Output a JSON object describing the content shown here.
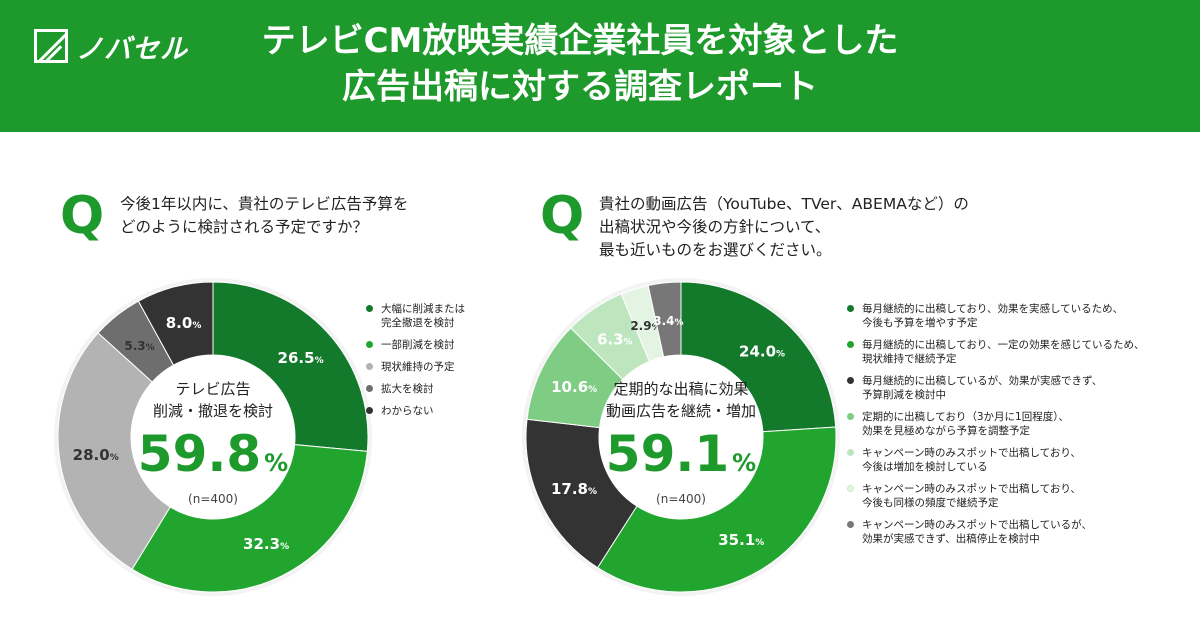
{
  "header": {
    "logo_text": "ノバセル",
    "title_line1": "テレビCM放映実績企業社員を対象とした",
    "title_line2": "広告出稿に対する調査レポート"
  },
  "q_mark": "Q",
  "left": {
    "question": [
      "今後1年以内に、貴社のテレビ広告予算を",
      "どのように検討される予定ですか？"
    ],
    "center_lines": [
      "テレビ広告",
      "削減・撤退を検討"
    ],
    "center_value": "59.8",
    "center_unit": "%",
    "n_label": "(n=400)",
    "legend": [
      {
        "label": [
          "大幅に削減または",
          "完全撤退を検討"
        ],
        "color": "#137a2c"
      },
      {
        "label": [
          "一部削減を検討"
        ],
        "color": "#21a52f"
      },
      {
        "label": [
          "現状維持の予定"
        ],
        "color": "#b3b3b3"
      },
      {
        "label": [
          "拡大を検討"
        ],
        "color": "#6e6e6e"
      },
      {
        "label": [
          "わからない"
        ],
        "color": "#333333"
      }
    ]
  },
  "right": {
    "question": [
      "貴社の動画広告（YouTube、TVer、ABEMAなど）の",
      "出稿状況や今後の方針について、",
      "最も近いものをお選びください。"
    ],
    "center_lines": [
      "定期的な出稿に効果",
      "動画広告を継続・増加"
    ],
    "center_value": "59.1",
    "center_unit": "%",
    "n_label": "(n=400)",
    "legend": [
      {
        "label": [
          "毎月継続的に出稿しており、効果を実感しているため、",
          "今後も予算を増やす予定"
        ],
        "color": "#137a2c"
      },
      {
        "label": [
          "毎月継続的に出稿しており、一定の効果を感じているため、",
          "現状維持で継続予定"
        ],
        "color": "#21a52f"
      },
      {
        "label": [
          "毎月継続的に出稿しているが、効果が実感できず、",
          "予算削減を検討中"
        ],
        "color": "#333333"
      },
      {
        "label": [
          "定期的に出稿しており（3か月に1回程度）、",
          "効果を見極めながら予算を調整予定"
        ],
        "color": "#7fcc84"
      },
      {
        "label": [
          "キャンペーン時のみスポットで出稿しており、",
          "今後は増加を検討している"
        ],
        "color": "#bde6bf"
      },
      {
        "label": [
          "キャンペーン時のみスポットで出稿しており、",
          "今後も同様の頻度で継続予定"
        ],
        "color": "#e3f4e3"
      },
      {
        "label": [
          "キャンペーン時のみスポットで出稿しているが、",
          "効果が実感できず、出稿停止を検討中"
        ],
        "color": "#777777"
      }
    ]
  },
  "chart_data": [
    {
      "type": "pie",
      "title": "今後1年以内に、貴社のテレビ広告予算をどのように検討される予定ですか？",
      "categories": [
        "大幅に削減または完全撤退を検討",
        "一部削減を検討",
        "現状維持の予定",
        "拡大を検討",
        "わからない"
      ],
      "values": [
        26.5,
        32.3,
        28.0,
        5.3,
        8.0
      ],
      "value_labels": [
        "26.5",
        "32.3",
        "28.0",
        "5.3",
        "8.0"
      ],
      "colors": [
        "#137a2c",
        "#21a52f",
        "#b3b3b3",
        "#6e6e6e",
        "#333333"
      ],
      "label_colors": [
        "#ffffff",
        "#ffffff",
        "#333333",
        "#333333",
        "#ffffff"
      ],
      "unit": "%",
      "legend_position": "right"
    },
    {
      "type": "pie",
      "title": "貴社の動画広告（YouTube、TVer、ABEMAなど）の出稿状況や今後の方針について、最も近いものをお選びください。",
      "categories": [
        "毎月継続的に出稿しており、効果を実感しているため、今後も予算を増やす予定",
        "毎月継続的に出稿しており、一定の効果を感じているため、現状維持で継続予定",
        "毎月継続的に出稿しているが、効果が実感できず、予算削減を検討中",
        "定期的に出稿しており（3か月に1回程度）、効果を見極めながら予算を調整予定",
        "キャンペーン時のみスポットで出稿しており、今後は増加を検討している",
        "キャンペーン時のみスポットで出稿しており、今後も同様の頻度で継続予定",
        "キャンペーン時のみスポットで出稿しているが、効果が実感できず、出稿停止を検討中"
      ],
      "values": [
        24.0,
        35.1,
        17.8,
        10.6,
        6.3,
        2.9,
        3.4
      ],
      "value_labels": [
        "24.0",
        "35.1",
        "17.8",
        "10.6",
        "6.3",
        "2.9",
        "3.4"
      ],
      "colors": [
        "#137a2c",
        "#21a52f",
        "#333333",
        "#7fcc84",
        "#bde6bf",
        "#e3f4e3",
        "#777777"
      ],
      "label_colors": [
        "#ffffff",
        "#ffffff",
        "#ffffff",
        "#ffffff",
        "#ffffff",
        "#333333",
        "#ffffff"
      ],
      "unit": "%",
      "legend_position": "right"
    }
  ]
}
